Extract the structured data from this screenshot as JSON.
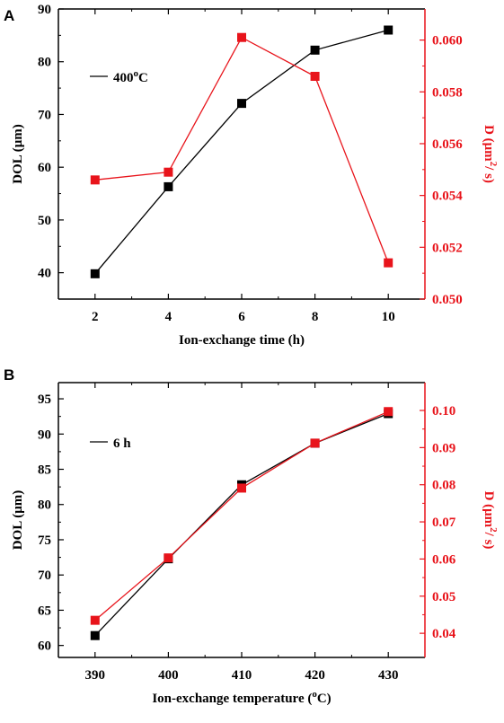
{
  "chart_data": [
    {
      "panel_label": "A",
      "type": "line",
      "xlabel": "Ion-exchange time (h)",
      "ylabel_left": "DOL (μm)",
      "ylabel_right_parts": [
        "D (μm",
        "2",
        "/ s)"
      ],
      "legend_label_parts": [
        "400",
        "o",
        "C"
      ],
      "x_ticks": [
        "2",
        "4",
        "6",
        "8",
        "10"
      ],
      "y_left_ticks": [
        "40",
        "50",
        "60",
        "70",
        "80",
        "90"
      ],
      "y_right_ticks": [
        "0.050",
        "0.052",
        "0.054",
        "0.056",
        "0.058",
        "0.060"
      ],
      "xlim": [
        1,
        11
      ],
      "ylim_left": [
        35,
        90
      ],
      "ylim_right": [
        0.05,
        0.0612
      ],
      "grid": false,
      "legend_position": "upper-left",
      "colors": {
        "left": "#000000",
        "right": "#e8141b"
      },
      "series": [
        {
          "axis": "left",
          "x": [
            2,
            4,
            6,
            8,
            10
          ],
          "values": [
            39.8,
            56.3,
            72.1,
            82.2,
            86.0
          ]
        },
        {
          "axis": "right",
          "x": [
            2,
            4,
            6,
            8,
            10
          ],
          "values": [
            0.0546,
            0.0549,
            0.0601,
            0.0586,
            0.0514
          ]
        }
      ]
    },
    {
      "panel_label": "B",
      "type": "line",
      "xlabel_parts": [
        "Ion-exchange temperature (",
        "o",
        "C)"
      ],
      "ylabel_left": "DOL (μm)",
      "ylabel_right_parts": [
        "D (μm",
        "2",
        "/ s)"
      ],
      "legend_label_parts": [
        "6 h"
      ],
      "x_ticks": [
        "390",
        "400",
        "410",
        "420",
        "430"
      ],
      "y_left_ticks": [
        "60",
        "65",
        "70",
        "75",
        "80",
        "85",
        "90",
        "95"
      ],
      "y_right_ticks": [
        "0.04",
        "0.05",
        "0.06",
        "0.07",
        "0.08",
        "0.09",
        "0.10"
      ],
      "xlim": [
        385,
        435
      ],
      "ylim_left": [
        58.3,
        97.3
      ],
      "ylim_right": [
        0.0335,
        0.1075
      ],
      "grid": false,
      "legend_position": "upper-left",
      "colors": {
        "left": "#000000",
        "right": "#e8141b"
      },
      "series": [
        {
          "axis": "left",
          "x": [
            390,
            400,
            410,
            420,
            430
          ],
          "values": [
            61.4,
            72.3,
            82.8,
            88.7,
            92.9
          ]
        },
        {
          "axis": "right",
          "x": [
            390,
            400,
            410,
            420,
            430
          ],
          "values": [
            0.0435,
            0.0603,
            0.0791,
            0.0912,
            0.0997
          ]
        }
      ]
    }
  ]
}
